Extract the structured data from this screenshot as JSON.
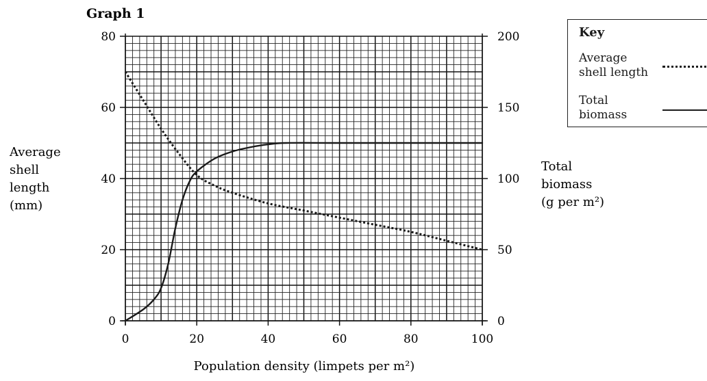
{
  "graph_title": "Graph 1",
  "key": {
    "title": "Key",
    "items": [
      {
        "label_line1": "Average",
        "label_line2": "shell length",
        "style": "dotted"
      },
      {
        "label_line1": "Total",
        "label_line2": "biomass",
        "style": "solid"
      }
    ]
  },
  "colors": {
    "curve": "#1a1a1a",
    "grid": "#222222"
  },
  "chart_data": {
    "type": "line",
    "title": "Graph 1",
    "xlabel": "Population density (limpets per m²)",
    "ylabel_left": [
      "Average",
      "shell",
      "length",
      "(mm)"
    ],
    "ylabel_right": [
      "Total",
      "biomass",
      "(g per m²)"
    ],
    "xlim": [
      0,
      100
    ],
    "ylim_left": [
      0,
      80
    ],
    "ylim_right": [
      0,
      200
    ],
    "x_ticks": [
      "0",
      "20",
      "40",
      "60",
      "80",
      "100"
    ],
    "y_left_ticks": [
      "0",
      "20",
      "40",
      "60",
      "80"
    ],
    "y_right_ticks": [
      "0",
      "50",
      "100",
      "150",
      "200"
    ],
    "grid": true,
    "legend": "top-right",
    "series": [
      {
        "name": "Average shell length",
        "axis": "left",
        "style": "dotted",
        "x": [
          0,
          5,
          10,
          15,
          20,
          25,
          30,
          40,
          50,
          60,
          70,
          80,
          90,
          100
        ],
        "y": [
          70,
          62,
          54,
          47,
          41,
          38,
          36,
          33,
          31,
          29,
          27,
          25,
          22.5,
          20
        ]
      },
      {
        "name": "Total biomass",
        "axis": "right",
        "style": "solid",
        "x": [
          0,
          5,
          8,
          10,
          12,
          14,
          16,
          18,
          20,
          25,
          30,
          35,
          40,
          45,
          60,
          80,
          100
        ],
        "y": [
          0,
          8,
          15,
          23,
          40,
          65,
          85,
          98,
          105,
          114,
          119,
          122,
          124,
          125,
          125,
          125,
          125
        ]
      }
    ]
  }
}
